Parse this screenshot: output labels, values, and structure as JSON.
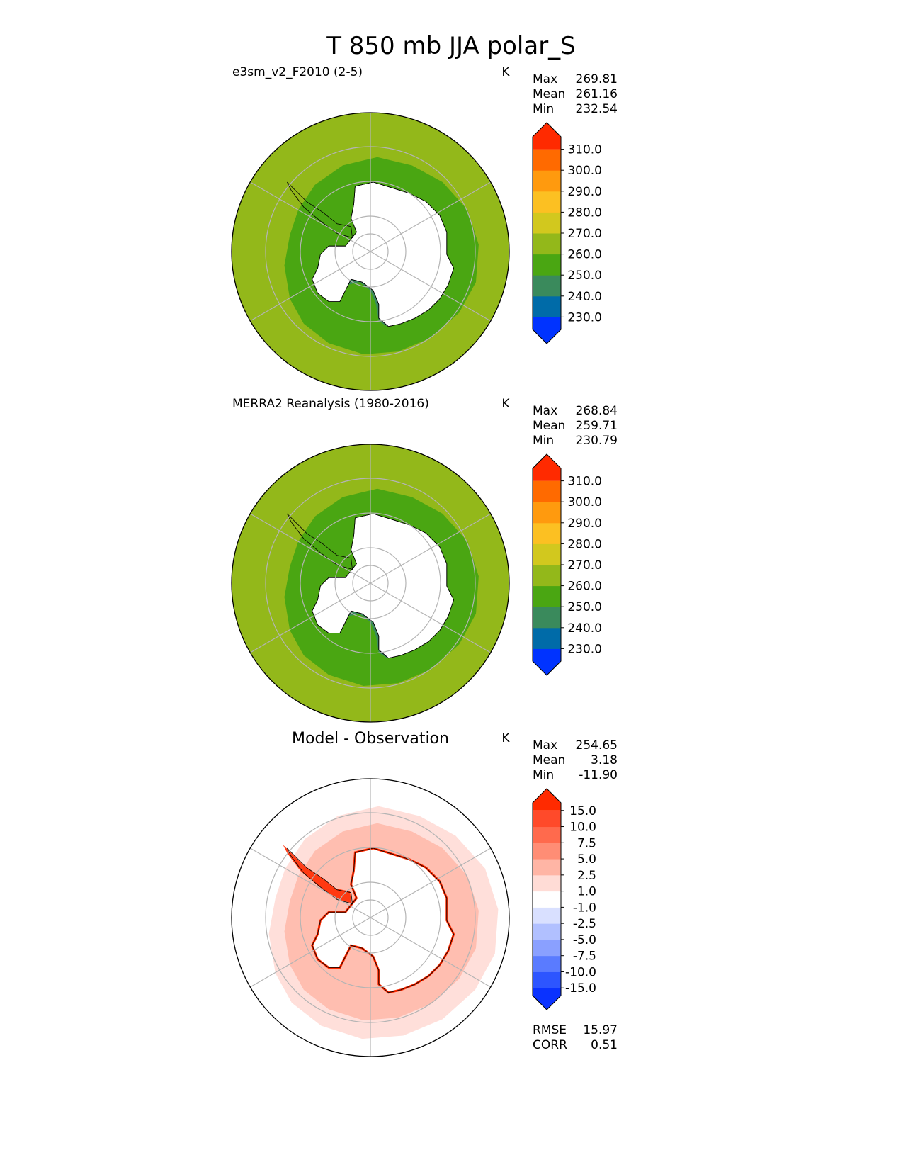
{
  "figure": {
    "title": "T 850 mb JJA polar_S"
  },
  "chart_data": [
    {
      "type": "heatmap",
      "projection": "south-polar-stereographic",
      "title": "e3sm_v2_F2010 (2-5)",
      "units": "K",
      "stats": [
        {
          "label": "Max",
          "value": "269.81"
        },
        {
          "label": "Mean",
          "value": "261.16"
        },
        {
          "label": "Min",
          "value": "232.54"
        }
      ],
      "field_bands": [
        {
          "band": "ocean-outer",
          "value_range": [
            260,
            270
          ]
        },
        {
          "band": "sea-ice-ring",
          "value_range": [
            250,
            260
          ]
        },
        {
          "band": "ross-weddell-shelf",
          "value_range": [
            240,
            250
          ]
        },
        {
          "band": "ice-sheet-interior",
          "value_range": "masked"
        }
      ],
      "colorbar": {
        "extend": "both",
        "tick_labels": [
          "230.0",
          "240.0",
          "250.0",
          "260.0",
          "270.0",
          "280.0",
          "290.0",
          "300.0",
          "310.0"
        ],
        "colors": [
          "#0033ff",
          "#006ba8",
          "#3a8a5c",
          "#4aa612",
          "#93b81a",
          "#d2c81e",
          "#fcc022",
          "#ff9a0e",
          "#ff6a00",
          "#ff2a00"
        ]
      }
    },
    {
      "type": "heatmap",
      "projection": "south-polar-stereographic",
      "title": "MERRA2 Reanalysis (1980-2016)",
      "units": "K",
      "stats": [
        {
          "label": "Max",
          "value": "268.84"
        },
        {
          "label": "Mean",
          "value": "259.71"
        },
        {
          "label": "Min",
          "value": "230.79"
        }
      ],
      "field_bands": [
        {
          "band": "ocean-outer",
          "value_range": [
            260,
            270
          ]
        },
        {
          "band": "sea-ice-ring",
          "value_range": [
            250,
            260
          ]
        },
        {
          "band": "ross-weddell-shelf",
          "value_range": [
            240,
            250
          ]
        },
        {
          "band": "ice-sheet-interior",
          "value_range": "masked"
        }
      ],
      "colorbar": {
        "extend": "both",
        "tick_labels": [
          "230.0",
          "240.0",
          "250.0",
          "260.0",
          "270.0",
          "280.0",
          "290.0",
          "300.0",
          "310.0"
        ],
        "colors": [
          "#0033ff",
          "#006ba8",
          "#3a8a5c",
          "#4aa612",
          "#93b81a",
          "#d2c81e",
          "#fcc022",
          "#ff9a0e",
          "#ff6a00",
          "#ff2a00"
        ]
      }
    },
    {
      "type": "heatmap",
      "projection": "south-polar-stereographic",
      "title": "Model - Observation",
      "units": "K",
      "stats": [
        {
          "label": "Max",
          "value": "254.65"
        },
        {
          "label": "Mean",
          "value": "3.18"
        },
        {
          "label": "Min",
          "value": "-11.90"
        }
      ],
      "bottom_stats": [
        {
          "label": "RMSE",
          "value": "15.97"
        },
        {
          "label": "CORR",
          "value": "0.51"
        }
      ],
      "field_bands": [
        {
          "band": "broad-positive",
          "value_range": [
            1.0,
            2.5
          ]
        },
        {
          "band": "sea-ice-ring-positive",
          "value_range": [
            2.5,
            5.0
          ]
        },
        {
          "band": "ice-edge-max",
          "value_range": [
            15.0,
            "max"
          ]
        },
        {
          "band": "ice-sheet-interior",
          "value_range": "masked"
        }
      ],
      "colorbar": {
        "extend": "both",
        "tick_labels": [
          "-15.0",
          "-10.0",
          "-7.5",
          "-5.0",
          "-2.5",
          "-1.0",
          "1.0",
          "2.5",
          "5.0",
          "7.5",
          "10.0",
          "15.0"
        ],
        "colors": [
          "#0a32ff",
          "#2d55ff",
          "#5a7bff",
          "#8aa0ff",
          "#b1c0ff",
          "#d9e0ff",
          "#ffffff",
          "#ffdcd6",
          "#ffb5a5",
          "#ff8d75",
          "#ff6a4d",
          "#ff4a2a",
          "#ff2a00"
        ]
      }
    }
  ]
}
